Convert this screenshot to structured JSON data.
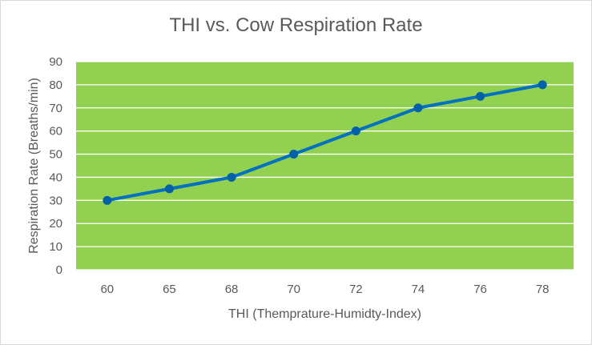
{
  "chart_data": {
    "type": "line",
    "title": "THI vs. Cow Respiration Rate",
    "xlabel": "THI (Themprature-Humidty-Index)",
    "ylabel": "Respiration Rate (Breaths/min)",
    "categories": [
      "60",
      "65",
      "68",
      "70",
      "72",
      "74",
      "76",
      "78"
    ],
    "series": [
      {
        "values": [
          30,
          35,
          40,
          50,
          60,
          70,
          75,
          80
        ]
      }
    ],
    "ylim": [
      0,
      90
    ],
    "yticks": [
      "0",
      "10",
      "20",
      "30",
      "40",
      "50",
      "60",
      "70",
      "80",
      "90"
    ],
    "grid": true,
    "legend": "none",
    "colors": {
      "plot_background": "#92d050",
      "gridline": "#ffffff",
      "line": "#0070c0",
      "marker": "#0060a8",
      "text": "#595959"
    }
  }
}
